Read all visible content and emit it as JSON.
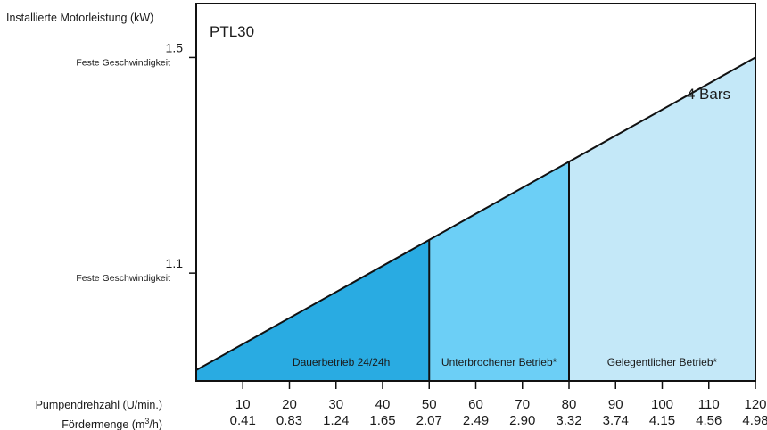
{
  "chart_data": {
    "type": "area",
    "model_label": "PTL30",
    "series_label": "4 Bars",
    "ylabel": "Installierte Motorleistung (kW)",
    "x_rpm_label": "Pumpendrehzahl (U/min.)",
    "x_flow_label_prefix": "Fördermenge (m",
    "x_flow_label_sup": "3",
    "x_flow_label_suffix": "/h)",
    "xlim": [
      0,
      120
    ],
    "ylim": [
      0.9,
      1.6
    ],
    "y_ticks": [
      {
        "value": 1.1,
        "label": "1.1",
        "sub": "Feste Geschwindigkeit"
      },
      {
        "value": 1.5,
        "label": "1.5",
        "sub": "Feste Geschwindigkeit"
      }
    ],
    "x_ticks": [
      {
        "rpm": 10,
        "rpm_label": "10",
        "flow_label": "0.41"
      },
      {
        "rpm": 20,
        "rpm_label": "20",
        "flow_label": "0.83"
      },
      {
        "rpm": 30,
        "rpm_label": "30",
        "flow_label": "1.24"
      },
      {
        "rpm": 40,
        "rpm_label": "40",
        "flow_label": "1.65"
      },
      {
        "rpm": 50,
        "rpm_label": "50",
        "flow_label": "2.07"
      },
      {
        "rpm": 60,
        "rpm_label": "60",
        "flow_label": "2.49"
      },
      {
        "rpm": 70,
        "rpm_label": "70",
        "flow_label": "2.90"
      },
      {
        "rpm": 80,
        "rpm_label": "80",
        "flow_label": "3.32"
      },
      {
        "rpm": 90,
        "rpm_label": "90",
        "flow_label": "3.74"
      },
      {
        "rpm": 100,
        "rpm_label": "100",
        "flow_label": "4.15"
      },
      {
        "rpm": 110,
        "rpm_label": "110",
        "flow_label": "4.56"
      },
      {
        "rpm": 120,
        "rpm_label": "120",
        "flow_label": "4.98"
      }
    ],
    "line": {
      "x": [
        0,
        120
      ],
      "y": [
        0.92,
        1.5
      ]
    },
    "regions": [
      {
        "label": "Dauerbetrieb 24/24h",
        "x_start": 0,
        "x_end": 50,
        "color": "#29abe2"
      },
      {
        "label": "Unterbrochener Betrieb*",
        "x_start": 50,
        "x_end": 80,
        "color": "#6ccff6"
      },
      {
        "label": "Gelegentlicher Betrieb*",
        "x_start": 80,
        "x_end": 120,
        "color": "#c4e8f8"
      }
    ]
  }
}
